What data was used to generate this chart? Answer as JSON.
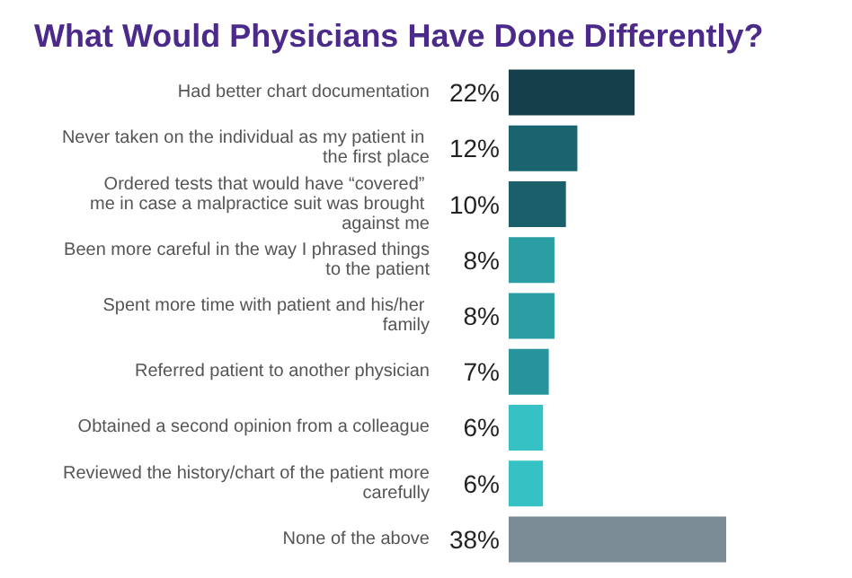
{
  "chart_data": {
    "type": "bar",
    "orientation": "horizontal",
    "title": "What Would Physicians Have Done Differently?",
    "categories": [
      "Had better chart documentation",
      "Never taken on the individual as my patient in the first place",
      "Ordered tests that would have “covered” me in case a malpractice suit was brought against me",
      "Been more careful in the way I phrased things to the patient",
      "Spent more time with patient and his/her family",
      "Referred patient to another physician",
      "Obtained a second opinion from a colleague",
      "Reviewed the history/chart of the patient more carefully",
      "None of the above"
    ],
    "values": [
      22,
      12,
      10,
      8,
      8,
      7,
      6,
      6,
      38
    ],
    "colors": [
      "#143f4a",
      "#1a6470",
      "#1b5f6b",
      "#2a9ea3",
      "#2a9ea3",
      "#26949a",
      "#36c2c4",
      "#36c2c4",
      "#7b8c96"
    ],
    "value_labels": [
      "22%",
      "12%",
      "10%",
      "8%",
      "8%",
      "7%",
      "6%",
      "6%",
      "38%"
    ]
  }
}
